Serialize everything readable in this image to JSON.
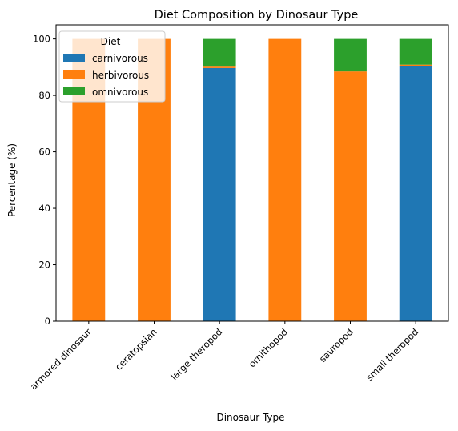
{
  "chart_data": {
    "type": "bar",
    "stacked": true,
    "title": "Diet Composition by Dinosaur Type",
    "xlabel": "Dinosaur Type",
    "ylabel": "Percentage (%)",
    "ylim": [
      0,
      105
    ],
    "yticks": [
      0,
      20,
      40,
      60,
      80,
      100
    ],
    "grid": false,
    "categories": [
      "armored dinosaur",
      "ceratopsian",
      "large theropod",
      "ornithopod",
      "sauropod",
      "small theropod"
    ],
    "series": [
      {
        "name": "carnivorous",
        "color": "#1f77b4",
        "values": [
          0,
          0,
          89.7,
          0,
          0,
          90.4
        ]
      },
      {
        "name": "herbivorous",
        "color": "#ff7f0e",
        "values": [
          100,
          100,
          0.5,
          100,
          88.5,
          0.5
        ]
      },
      {
        "name": "omnivorous",
        "color": "#2ca02c",
        "values": [
          0,
          0,
          9.8,
          0,
          11.5,
          9.1
        ]
      }
    ],
    "legend": {
      "title": "Diet",
      "placement": "upper-left"
    }
  }
}
